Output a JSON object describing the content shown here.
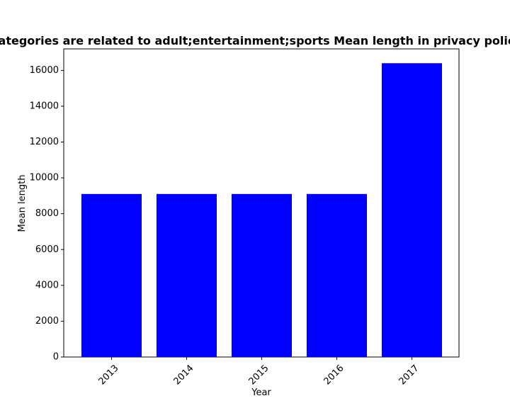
{
  "chart_data": {
    "type": "bar",
    "title": "Categories are related to adult;entertainment;sports Mean length in privacy policies",
    "xlabel": "Year",
    "ylabel": "Mean length",
    "categories": [
      "2013",
      "2014",
      "2015",
      "2016",
      "2017"
    ],
    "values": [
      9100,
      9100,
      9100,
      9100,
      16400
    ],
    "ylim": [
      0,
      17200
    ],
    "yticks": [
      0,
      2000,
      4000,
      6000,
      8000,
      10000,
      12000,
      14000,
      16000
    ],
    "bar_color": "#0000ff",
    "grid": false
  }
}
